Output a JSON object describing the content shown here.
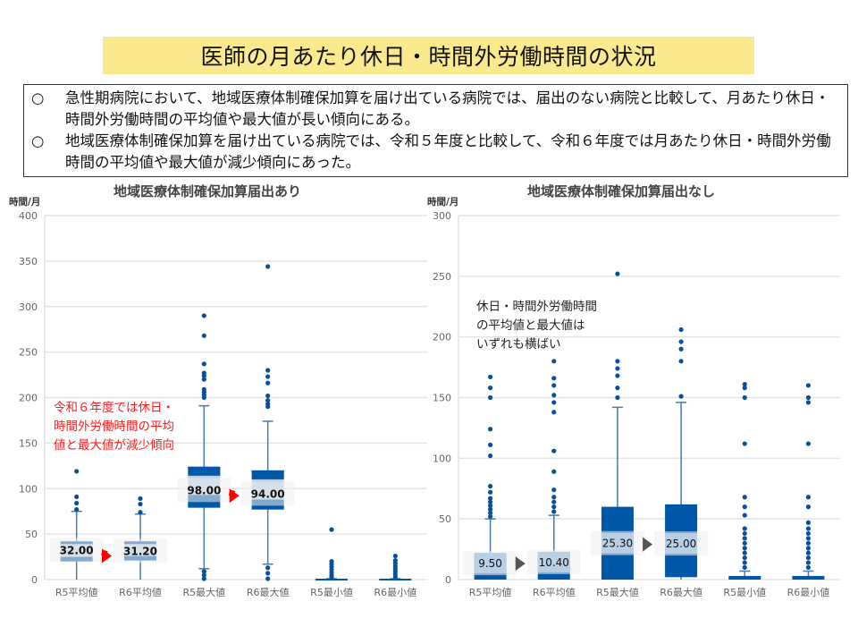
{
  "title": "医師の月あたり休日・時間外労働時間の状況",
  "summary": [
    {
      "mark": "○",
      "text": "急性期病院において、地域医療体制確保加算を届け出ている病院では、届出のない病院と比較して、月あたり休日・時間外労働時間の平均値や最大値が長い傾向にある。"
    },
    {
      "mark": "○",
      "text": "地域医療体制確保加算を届け出ている病院では、令和５年度と比較して、令和６年度では月あたり休日・時間外労働時間の平均値や最大値が減少傾向にあった。"
    }
  ],
  "colors": {
    "box_dark": "#0057a8",
    "box_light": "#b8cfe6",
    "whisker": "#4a7aab",
    "outlier": "#0a4f9a",
    "grid": "#e4e4e4",
    "red_arrow": "#ff0000",
    "gray_arrow": "#555555"
  },
  "chart_data": [
    {
      "type": "box",
      "title": "地域医療体制確保加算届出あり",
      "ylabel": "時間/月",
      "ylim": [
        0,
        400
      ],
      "yticks": [
        0,
        50,
        100,
        150,
        200,
        250,
        300,
        350,
        400
      ],
      "grid": true,
      "categories": [
        "R5平均値",
        "R6平均値",
        "R5最大値",
        "R6最大値",
        "R5最小値",
        "R6最小値"
      ],
      "boxes": [
        {
          "q1": 20,
          "median": 23,
          "q3": 42,
          "whisker_low": 0,
          "whisker_high": 75,
          "outliers": [
            77,
            84,
            91,
            119
          ],
          "label": "32.00"
        },
        {
          "q1": 21,
          "median": 24,
          "q3": 42,
          "whisker_low": 0,
          "whisker_high": 72,
          "outliers": [
            74,
            83,
            89
          ],
          "label": "31.20"
        },
        {
          "q1": 79,
          "median": 93,
          "q3": 124,
          "whisker_low": 12,
          "whisker_high": 191,
          "outliers": [
            1,
            5,
            9,
            200,
            203,
            206,
            209,
            220,
            224,
            227,
            237,
            268,
            290
          ],
          "label": "98.00"
        },
        {
          "q1": 77,
          "median": 88,
          "q3": 120,
          "whisker_low": 17,
          "whisker_high": 174,
          "outliers": [
            1,
            7,
            13,
            190,
            193,
            197,
            202,
            216,
            223,
            230,
            344
          ],
          "label": "94.00"
        },
        {
          "q1": 0,
          "median": 0,
          "q3": 1,
          "whisker_low": 0,
          "whisker_high": 1,
          "outliers": [
            3,
            5,
            8,
            11,
            14,
            17,
            20,
            55
          ],
          "label": ""
        },
        {
          "q1": 0,
          "median": 0,
          "q3": 1,
          "whisker_low": 0,
          "whisker_high": 1,
          "outliers": [
            3,
            6,
            9,
            12,
            15,
            18,
            21,
            26
          ],
          "label": ""
        }
      ],
      "arrows": [
        {
          "from": 0,
          "to": 1,
          "color": "red"
        },
        {
          "from": 2,
          "to": 3,
          "color": "red"
        }
      ],
      "annotation": [
        "令和６年度では休日・",
        "時間外労働時間の平均",
        "値と最大値が減少傾向"
      ]
    },
    {
      "type": "box",
      "title": "地域医療体制確保加算届出なし",
      "ylabel": "時間/月",
      "ylim": [
        0,
        300
      ],
      "yticks": [
        0,
        50,
        100,
        150,
        200,
        250,
        300
      ],
      "grid": true,
      "categories": [
        "R5平均値",
        "R6平均値",
        "R5最大値",
        "R6最大値",
        "R5最小値",
        "R6最小値"
      ],
      "boxes": [
        {
          "q1": 0,
          "median": 4,
          "q3": 21,
          "whisker_low": 0,
          "whisker_high": 50,
          "outliers": [
            52,
            55,
            58,
            61,
            64,
            67,
            72,
            77,
            102,
            111,
            124,
            150,
            158,
            167
          ],
          "label": "9.50"
        },
        {
          "q1": 0,
          "median": 6,
          "q3": 22,
          "whisker_low": 0,
          "whisker_high": 53,
          "outliers": [
            56,
            60,
            64,
            68,
            74,
            89,
            106,
            138,
            146,
            152,
            160,
            166,
            180
          ],
          "label": "10.40"
        },
        {
          "q1": 0,
          "median": 0,
          "q3": 60,
          "whisker_low": 0,
          "whisker_high": 142,
          "outliers": [
            150,
            158,
            168,
            174,
            180,
            252
          ],
          "label": "25.30"
        },
        {
          "q1": 2,
          "median": 2,
          "q3": 62,
          "whisker_low": 0,
          "whisker_high": 146,
          "outliers": [
            151,
            180,
            190,
            196,
            206
          ],
          "label": "25.00"
        },
        {
          "q1": 0,
          "median": 1,
          "q3": 3,
          "whisker_low": 0,
          "whisker_high": 7,
          "outliers": [
            10,
            14,
            18,
            22,
            26,
            30,
            34,
            38,
            42,
            53,
            60,
            68,
            112,
            150,
            158,
            161
          ],
          "label": ""
        },
        {
          "q1": 0,
          "median": 1,
          "q3": 3,
          "whisker_low": 0,
          "whisker_high": 7,
          "outliers": [
            10,
            14,
            18,
            22,
            26,
            30,
            34,
            38,
            42,
            47,
            60,
            68,
            112,
            146,
            150,
            160
          ],
          "label": ""
        }
      ],
      "arrows": [
        {
          "from": 0,
          "to": 1,
          "color": "gray"
        },
        {
          "from": 2,
          "to": 3,
          "color": "gray"
        }
      ],
      "annotation": [
        "休日・時間外労働時間",
        "の平均値と最大値は",
        "いずれも横ばい"
      ]
    }
  ]
}
